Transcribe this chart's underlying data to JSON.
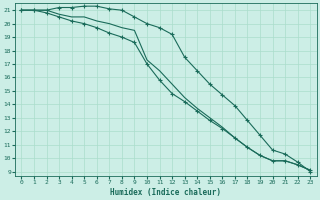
{
  "xlabel": "Humidex (Indice chaleur)",
  "bg_color": "#cceee6",
  "grid_color": "#aaddcc",
  "line_color": "#1a6b5a",
  "xlim": [
    -0.5,
    23.5
  ],
  "ylim": [
    8.7,
    21.5
  ],
  "xticks": [
    0,
    1,
    2,
    3,
    4,
    5,
    6,
    7,
    8,
    9,
    10,
    11,
    12,
    13,
    14,
    15,
    16,
    17,
    18,
    19,
    20,
    21,
    22,
    23
  ],
  "yticks": [
    9,
    10,
    11,
    12,
    13,
    14,
    15,
    16,
    17,
    18,
    19,
    20,
    21
  ],
  "series": [
    {
      "x": [
        0,
        1,
        2,
        3,
        4,
        5,
        6,
        7,
        8,
        9,
        10,
        11,
        12,
        13,
        14,
        15,
        16,
        17,
        18,
        19,
        20,
        21,
        22,
        23
      ],
      "y": [
        21,
        21,
        21,
        21.2,
        21.2,
        21.3,
        21.3,
        21.1,
        21.0,
        20.5,
        20.0,
        19.7,
        19.2,
        17.5,
        16.5,
        15.5,
        14.7,
        13.9,
        12.8,
        11.7,
        10.6,
        10.3,
        9.7,
        9.0
      ],
      "has_markers": true
    },
    {
      "x": [
        0,
        1,
        2,
        3,
        4,
        5,
        6,
        7,
        8,
        9,
        10,
        11,
        12,
        13,
        14,
        15,
        16,
        17,
        18,
        19,
        20,
        21,
        22,
        23
      ],
      "y": [
        21,
        21,
        21,
        20.7,
        20.5,
        20.5,
        20.2,
        20.0,
        19.7,
        19.5,
        17.3,
        16.5,
        15.5,
        14.5,
        13.7,
        13.0,
        12.3,
        11.5,
        10.8,
        10.2,
        9.8,
        9.8,
        9.5,
        9.1
      ],
      "has_markers": false
    },
    {
      "x": [
        0,
        1,
        2,
        3,
        4,
        5,
        6,
        7,
        8,
        9,
        10,
        11,
        12,
        13,
        14,
        15,
        16,
        17,
        18,
        19,
        20,
        21,
        22,
        23
      ],
      "y": [
        21,
        21,
        20.8,
        20.5,
        20.2,
        20.0,
        19.7,
        19.3,
        19.0,
        18.6,
        17.0,
        15.8,
        14.8,
        14.2,
        13.5,
        12.8,
        12.2,
        11.5,
        10.8,
        10.2,
        9.8,
        9.8,
        9.5,
        9.1
      ],
      "has_markers": true
    }
  ]
}
